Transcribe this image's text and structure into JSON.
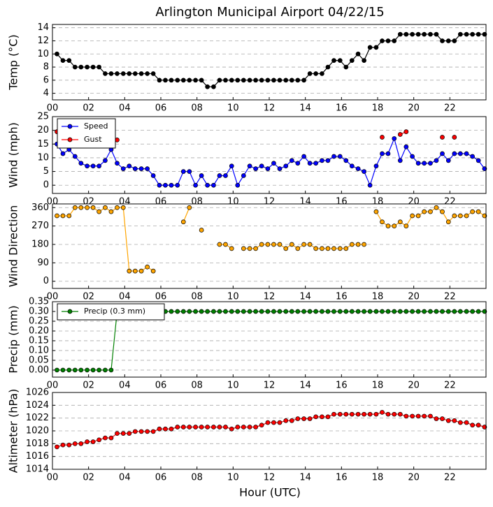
{
  "chart_data": [
    {
      "type": "line",
      "title": "Arlington Municipal Airport 04/22/15",
      "y_label": "Temp (°C)",
      "x": [
        0.25,
        0.58,
        0.92,
        1.25,
        1.58,
        1.92,
        2.25,
        2.58,
        2.92,
        3.25,
        3.58,
        3.92,
        4.25,
        4.58,
        4.92,
        5.25,
        5.58,
        5.92,
        6.25,
        6.58,
        6.92,
        7.25,
        7.58,
        7.92,
        8.25,
        8.58,
        8.92,
        9.25,
        9.58,
        9.92,
        10.25,
        10.58,
        10.92,
        11.25,
        11.58,
        11.92,
        12.25,
        12.58,
        12.92,
        13.25,
        13.58,
        13.92,
        14.25,
        14.58,
        14.92,
        15.25,
        15.58,
        15.92,
        16.25,
        16.58,
        16.92,
        17.25,
        17.58,
        17.92,
        18.25,
        18.58,
        18.92,
        19.25,
        19.58,
        19.92,
        20.25,
        20.58,
        20.92,
        21.25,
        21.58,
        21.92,
        22.25,
        22.58,
        22.92,
        23.25,
        23.58,
        23.92
      ],
      "series": [
        {
          "name": "Temp",
          "color": "#000000",
          "values": [
            10,
            9,
            9,
            8,
            8,
            8,
            8,
            8,
            7,
            7,
            7,
            7,
            7,
            7,
            7,
            7,
            7,
            6,
            6,
            6,
            6,
            6,
            6,
            6,
            6,
            5,
            5,
            6,
            6,
            6,
            6,
            6,
            6,
            6,
            6,
            6,
            6,
            6,
            6,
            6,
            6,
            6,
            7,
            7,
            7,
            8,
            9,
            9,
            8,
            9,
            10,
            9,
            11,
            11,
            12,
            12,
            12,
            13,
            13,
            13,
            13,
            13,
            13,
            13,
            12,
            12,
            12,
            13,
            13,
            13,
            13,
            13
          ]
        }
      ],
      "xlim": [
        0,
        24
      ],
      "xticks": [
        {
          "value": 0,
          "label": "00"
        },
        {
          "value": 2,
          "label": "02"
        },
        {
          "value": 4,
          "label": "04"
        },
        {
          "value": 6,
          "label": "06"
        },
        {
          "value": 8,
          "label": "08"
        },
        {
          "value": 10,
          "label": "10"
        },
        {
          "value": 12,
          "label": "12"
        },
        {
          "value": 14,
          "label": "14"
        },
        {
          "value": 16,
          "label": "16"
        },
        {
          "value": 18,
          "label": "18"
        },
        {
          "value": 20,
          "label": "20"
        },
        {
          "value": 22,
          "label": "22"
        }
      ],
      "ylim": [
        3,
        14.5
      ],
      "yticks": [
        4,
        6,
        8,
        10,
        12,
        14
      ],
      "grid": "y"
    },
    {
      "type": "line",
      "y_label": "Wind (mph)",
      "legend": "upper left",
      "x": [
        0.25,
        0.58,
        0.92,
        1.25,
        1.58,
        1.92,
        2.25,
        2.58,
        2.92,
        3.25,
        3.58,
        3.92,
        4.25,
        4.58,
        4.92,
        5.25,
        5.58,
        5.92,
        6.25,
        6.58,
        6.92,
        7.25,
        7.58,
        7.92,
        8.25,
        8.58,
        8.92,
        9.25,
        9.58,
        9.92,
        10.25,
        10.58,
        10.92,
        11.25,
        11.58,
        11.92,
        12.25,
        12.58,
        12.92,
        13.25,
        13.58,
        13.92,
        14.25,
        14.58,
        14.92,
        15.25,
        15.58,
        15.92,
        16.25,
        16.58,
        16.92,
        17.25,
        17.58,
        17.92,
        18.25,
        18.58,
        18.92,
        19.25,
        19.58,
        19.92,
        20.25,
        20.58,
        20.92,
        21.25,
        21.58,
        21.92,
        22.25,
        22.58,
        22.92,
        23.25,
        23.58,
        23.92
      ],
      "series": [
        {
          "name": "Speed",
          "color": "#0000ff",
          "values": [
            15,
            11.5,
            13,
            10.5,
            8,
            7,
            7,
            7,
            9,
            13,
            8,
            6,
            7,
            6,
            6,
            6,
            3.5,
            0,
            0,
            0,
            0,
            5,
            5,
            0,
            3.5,
            0,
            0,
            3.5,
            3.5,
            7,
            0,
            3.5,
            7,
            6,
            7,
            6,
            8,
            6,
            7,
            9,
            8,
            10.5,
            8,
            8,
            9,
            9,
            10.5,
            10.5,
            9,
            7,
            6,
            5,
            0,
            7,
            11.5,
            11.5,
            17,
            9,
            14,
            10.5,
            8,
            8,
            8,
            9,
            11.5,
            9,
            11.5,
            11.5,
            11.5,
            10.5,
            9,
            6
          ]
        },
        {
          "name": "Gust",
          "color": "#ff0000",
          "values": [
            19.5,
            null,
            null,
            null,
            null,
            null,
            null,
            null,
            null,
            null,
            16.5,
            null,
            null,
            null,
            null,
            null,
            null,
            null,
            null,
            null,
            null,
            null,
            null,
            null,
            null,
            null,
            null,
            null,
            null,
            null,
            null,
            null,
            null,
            null,
            null,
            null,
            null,
            null,
            null,
            null,
            null,
            null,
            null,
            null,
            null,
            null,
            null,
            null,
            null,
            null,
            null,
            null,
            null,
            null,
            17.5,
            null,
            null,
            18.5,
            19.5,
            null,
            null,
            null,
            null,
            null,
            17.5,
            null,
            17.5,
            null,
            null,
            null,
            null,
            null
          ]
        }
      ],
      "xlim": [
        0,
        24
      ],
      "xticks": [
        {
          "value": 0,
          "label": "00"
        },
        {
          "value": 2,
          "label": "02"
        },
        {
          "value": 4,
          "label": "04"
        },
        {
          "value": 6,
          "label": "06"
        },
        {
          "value": 8,
          "label": "08"
        },
        {
          "value": 10,
          "label": "10"
        },
        {
          "value": 12,
          "label": "12"
        },
        {
          "value": 14,
          "label": "14"
        },
        {
          "value": 16,
          "label": "16"
        },
        {
          "value": 18,
          "label": "18"
        },
        {
          "value": 20,
          "label": "20"
        },
        {
          "value": 22,
          "label": "22"
        }
      ],
      "ylim": [
        -3,
        25
      ],
      "yticks": [
        0,
        5,
        10,
        15,
        20,
        25
      ],
      "grid": "y"
    },
    {
      "type": "line",
      "y_label": "Wind Direction",
      "x": [
        0.25,
        0.58,
        0.92,
        1.25,
        1.58,
        1.92,
        2.25,
        2.58,
        2.92,
        3.25,
        3.58,
        3.92,
        4.25,
        4.58,
        4.92,
        5.25,
        5.58,
        5.92,
        6.25,
        6.58,
        6.92,
        7.25,
        7.58,
        7.92,
        8.25,
        8.58,
        8.92,
        9.25,
        9.58,
        9.92,
        10.25,
        10.58,
        10.92,
        11.25,
        11.58,
        11.92,
        12.25,
        12.58,
        12.92,
        13.25,
        13.58,
        13.92,
        14.25,
        14.58,
        14.92,
        15.25,
        15.58,
        15.92,
        16.25,
        16.58,
        16.92,
        17.25,
        17.58,
        17.92,
        18.25,
        18.58,
        18.92,
        19.25,
        19.58,
        19.92,
        20.25,
        20.58,
        20.92,
        21.25,
        21.58,
        21.92,
        22.25,
        22.58,
        22.92,
        23.25,
        23.58,
        23.92
      ],
      "series": [
        {
          "name": "Direction",
          "color": "#ffa500",
          "values": [
            320,
            320,
            320,
            360,
            360,
            360,
            360,
            340,
            360,
            340,
            360,
            360,
            50,
            50,
            50,
            70,
            50,
            null,
            null,
            null,
            null,
            290,
            360,
            null,
            250,
            null,
            null,
            180,
            180,
            160,
            null,
            160,
            160,
            160,
            180,
            180,
            180,
            180,
            160,
            180,
            160,
            180,
            180,
            160,
            160,
            160,
            160,
            160,
            160,
            180,
            180,
            180,
            null,
            340,
            290,
            270,
            270,
            290,
            270,
            320,
            320,
            340,
            340,
            360,
            340,
            290,
            320,
            320,
            320,
            340,
            340,
            320
          ]
        }
      ],
      "xlim": [
        0,
        24
      ],
      "xticks": [
        {
          "value": 0,
          "label": "00"
        },
        {
          "value": 2,
          "label": "02"
        },
        {
          "value": 4,
          "label": "04"
        },
        {
          "value": 6,
          "label": "06"
        },
        {
          "value": 8,
          "label": "08"
        },
        {
          "value": 10,
          "label": "10"
        },
        {
          "value": 12,
          "label": "12"
        },
        {
          "value": 14,
          "label": "14"
        },
        {
          "value": 16,
          "label": "16"
        },
        {
          "value": 18,
          "label": "18"
        },
        {
          "value": 20,
          "label": "20"
        },
        {
          "value": 22,
          "label": "22"
        }
      ],
      "ylim": [
        -35,
        378
      ],
      "yticks": [
        0,
        90,
        180,
        270,
        360
      ],
      "grid": "y"
    },
    {
      "type": "line",
      "y_label": "Precip (mm)",
      "legend": "upper left",
      "x": [
        0.25,
        0.58,
        0.92,
        1.25,
        1.58,
        1.92,
        2.25,
        2.58,
        2.92,
        3.25,
        3.58,
        3.92,
        4.25,
        4.58,
        4.92,
        5.25,
        5.58,
        5.92,
        6.25,
        6.58,
        6.92,
        7.25,
        7.58,
        7.92,
        8.25,
        8.58,
        8.92,
        9.25,
        9.58,
        9.92,
        10.25,
        10.58,
        10.92,
        11.25,
        11.58,
        11.92,
        12.25,
        12.58,
        12.92,
        13.25,
        13.58,
        13.92,
        14.25,
        14.58,
        14.92,
        15.25,
        15.58,
        15.92,
        16.25,
        16.58,
        16.92,
        17.25,
        17.58,
        17.92,
        18.25,
        18.58,
        18.92,
        19.25,
        19.58,
        19.92,
        20.25,
        20.58,
        20.92,
        21.25,
        21.58,
        21.92,
        22.25,
        22.58,
        22.92,
        23.25,
        23.58,
        23.92
      ],
      "series": [
        {
          "name": "Precip (0.3 mm)",
          "color": "#008000",
          "values": [
            0,
            0,
            0,
            0,
            0,
            0,
            0,
            0,
            0,
            0,
            0.3,
            0.3,
            0.3,
            0.3,
            0.3,
            0.3,
            0.3,
            0.3,
            0.3,
            0.3,
            0.3,
            0.3,
            0.3,
            0.3,
            0.3,
            0.3,
            0.3,
            0.3,
            0.3,
            0.3,
            0.3,
            0.3,
            0.3,
            0.3,
            0.3,
            0.3,
            0.3,
            0.3,
            0.3,
            0.3,
            0.3,
            0.3,
            0.3,
            0.3,
            0.3,
            0.3,
            0.3,
            0.3,
            0.3,
            0.3,
            0.3,
            0.3,
            0.3,
            0.3,
            0.3,
            0.3,
            0.3,
            0.3,
            0.3,
            0.3,
            0.3,
            0.3,
            0.3,
            0.3,
            0.3,
            0.3,
            0.3,
            0.3,
            0.3,
            0.3,
            0.3,
            0.3
          ]
        }
      ],
      "xlim": [
        0,
        24
      ],
      "xticks": [
        {
          "value": 0,
          "label": "00"
        },
        {
          "value": 2,
          "label": "02"
        },
        {
          "value": 4,
          "label": "04"
        },
        {
          "value": 6,
          "label": "06"
        },
        {
          "value": 8,
          "label": "08"
        },
        {
          "value": 10,
          "label": "10"
        },
        {
          "value": 12,
          "label": "12"
        },
        {
          "value": 14,
          "label": "14"
        },
        {
          "value": 16,
          "label": "16"
        },
        {
          "value": 18,
          "label": "18"
        },
        {
          "value": 20,
          "label": "20"
        },
        {
          "value": 22,
          "label": "22"
        }
      ],
      "ylim": [
        -0.036,
        0.35
      ],
      "yticks": [
        {
          "value": 0,
          "label": "0.00"
        },
        {
          "value": 0.05,
          "label": "0.05"
        },
        {
          "value": 0.1,
          "label": "0.10"
        },
        {
          "value": 0.15,
          "label": "0.15"
        },
        {
          "value": 0.2,
          "label": "0.20"
        },
        {
          "value": 0.25,
          "label": "0.25"
        },
        {
          "value": 0.3,
          "label": "0.30"
        },
        {
          "value": 0.35,
          "label": "0.35"
        }
      ],
      "grid": "y"
    },
    {
      "type": "line",
      "y_label": "Altimeter (hPa)",
      "x_label": "Hour (UTC)",
      "x": [
        0.25,
        0.58,
        0.92,
        1.25,
        1.58,
        1.92,
        2.25,
        2.58,
        2.92,
        3.25,
        3.58,
        3.92,
        4.25,
        4.58,
        4.92,
        5.25,
        5.58,
        5.92,
        6.25,
        6.58,
        6.92,
        7.25,
        7.58,
        7.92,
        8.25,
        8.58,
        8.92,
        9.25,
        9.58,
        9.92,
        10.25,
        10.58,
        10.92,
        11.25,
        11.58,
        11.92,
        12.25,
        12.58,
        12.92,
        13.25,
        13.58,
        13.92,
        14.25,
        14.58,
        14.92,
        15.25,
        15.58,
        15.92,
        16.25,
        16.58,
        16.92,
        17.25,
        17.58,
        17.92,
        18.25,
        18.58,
        18.92,
        19.25,
        19.58,
        19.92,
        20.25,
        20.58,
        20.92,
        21.25,
        21.58,
        21.92,
        22.25,
        22.58,
        22.92,
        23.25,
        23.58,
        23.92
      ],
      "series": [
        {
          "name": "Altimeter",
          "color": "#ff0000",
          "values": [
            1017.5,
            1017.8,
            1017.8,
            1018.0,
            1018.0,
            1018.3,
            1018.3,
            1018.6,
            1018.9,
            1018.9,
            1019.6,
            1019.6,
            1019.6,
            1019.9,
            1019.9,
            1019.9,
            1019.9,
            1020.3,
            1020.3,
            1020.3,
            1020.6,
            1020.6,
            1020.6,
            1020.6,
            1020.6,
            1020.6,
            1020.6,
            1020.6,
            1020.6,
            1020.3,
            1020.6,
            1020.6,
            1020.6,
            1020.6,
            1020.9,
            1021.3,
            1021.3,
            1021.3,
            1021.6,
            1021.6,
            1021.9,
            1021.9,
            1021.9,
            1022.2,
            1022.2,
            1022.2,
            1022.6,
            1022.6,
            1022.6,
            1022.6,
            1022.6,
            1022.6,
            1022.6,
            1022.6,
            1022.9,
            1022.6,
            1022.6,
            1022.6,
            1022.3,
            1022.3,
            1022.3,
            1022.3,
            1022.3,
            1021.9,
            1021.9,
            1021.6,
            1021.6,
            1021.3,
            1021.3,
            1020.9,
            1020.9,
            1020.6
          ]
        }
      ],
      "xlim": [
        0,
        24
      ],
      "xticks": [
        {
          "value": 0,
          "label": "00"
        },
        {
          "value": 2,
          "label": "02"
        },
        {
          "value": 4,
          "label": "04"
        },
        {
          "value": 6,
          "label": "06"
        },
        {
          "value": 8,
          "label": "08"
        },
        {
          "value": 10,
          "label": "10"
        },
        {
          "value": 12,
          "label": "12"
        },
        {
          "value": 14,
          "label": "14"
        },
        {
          "value": 16,
          "label": "16"
        },
        {
          "value": 18,
          "label": "18"
        },
        {
          "value": 20,
          "label": "20"
        },
        {
          "value": 22,
          "label": "22"
        }
      ],
      "ylim": [
        1014,
        1026
      ],
      "yticks": [
        1014,
        1016,
        1018,
        1020,
        1022,
        1024,
        1026
      ],
      "grid": "y"
    }
  ]
}
